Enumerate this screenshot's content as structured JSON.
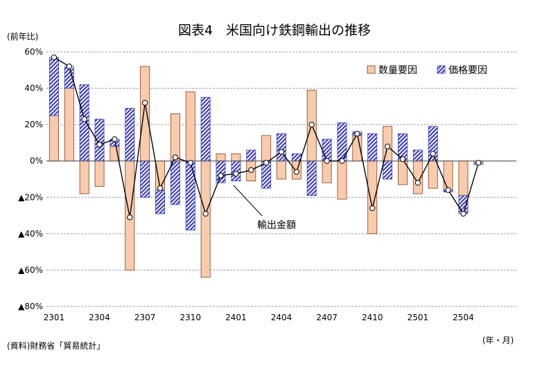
{
  "chart_data": {
    "type": "bar",
    "title": "図表4　米国向け鉄鋼輸出の推移",
    "ylabel": "(前年比)",
    "xlabel": "(年・月)",
    "source": "(資料)財務省「貿易統計」",
    "ylim": [
      -80,
      60
    ],
    "yticks": [
      {
        "value": 60,
        "label": "60%"
      },
      {
        "value": 40,
        "label": "40%"
      },
      {
        "value": 20,
        "label": "20%"
      },
      {
        "value": 0,
        "label": "0%"
      },
      {
        "value": -20,
        "label": "▲20%"
      },
      {
        "value": -40,
        "label": "▲40%"
      },
      {
        "value": -60,
        "label": "▲60%"
      },
      {
        "value": -80,
        "label": "▲80%"
      }
    ],
    "grid": true,
    "legend_position": "top-right",
    "categories": [
      "2301",
      "2302",
      "2303",
      "2304",
      "2305",
      "2306",
      "2307",
      "2308",
      "2309",
      "2310",
      "2311",
      "2312",
      "2401",
      "2402",
      "2403",
      "2404",
      "2405",
      "2406",
      "2407",
      "2408",
      "2409",
      "2410",
      "2411",
      "2412",
      "2501",
      "2502",
      "2503",
      "2504",
      "2505",
      "2506",
      "2507"
    ],
    "x_tick_labels": [
      {
        "index": 0,
        "label": "2301"
      },
      {
        "index": 3,
        "label": "2304"
      },
      {
        "index": 6,
        "label": "2307"
      },
      {
        "index": 9,
        "label": "2310"
      },
      {
        "index": 12,
        "label": "2401"
      },
      {
        "index": 15,
        "label": "2404"
      },
      {
        "index": 18,
        "label": "2407"
      },
      {
        "index": 21,
        "label": "2410"
      },
      {
        "index": 24,
        "label": "2501"
      },
      {
        "index": 27,
        "label": "2504"
      }
    ],
    "series": [
      {
        "name": "数量要因",
        "kind": "bar",
        "color": "#f8cbad",
        "stroke": "#7f3f1f",
        "values": [
          25,
          40,
          -18,
          -14,
          8,
          -60,
          52,
          -16,
          26,
          38,
          -64,
          4,
          4,
          -11,
          14,
          -10,
          -10,
          39,
          -12,
          -21,
          14,
          -40,
          19,
          -13,
          -18,
          -15,
          -16,
          -19,
          -1,
          null,
          null
        ]
      },
      {
        "name": "価格要因",
        "kind": "bar",
        "color": "#3f3fbf",
        "pattern": "hatch",
        "values": [
          32,
          12,
          42,
          23,
          4,
          29,
          -20,
          -13,
          -24,
          -38,
          35,
          -12,
          -11,
          6,
          -15,
          15,
          4,
          -19,
          12,
          21,
          2,
          15,
          -10,
          15,
          6,
          19,
          -1,
          -10,
          -1,
          null,
          null
        ]
      },
      {
        "name": "輸出金額",
        "kind": "line",
        "color": "#000000",
        "values": [
          57,
          52,
          23,
          9,
          12,
          -31,
          32,
          -15,
          2,
          -1,
          -29,
          -8,
          -7,
          -5,
          -1,
          5,
          -6,
          20,
          0,
          0,
          15,
          -26,
          8,
          1,
          -12,
          4,
          -16,
          -29,
          -1,
          null,
          null
        ]
      }
    ],
    "annotation": "輸出金額"
  }
}
